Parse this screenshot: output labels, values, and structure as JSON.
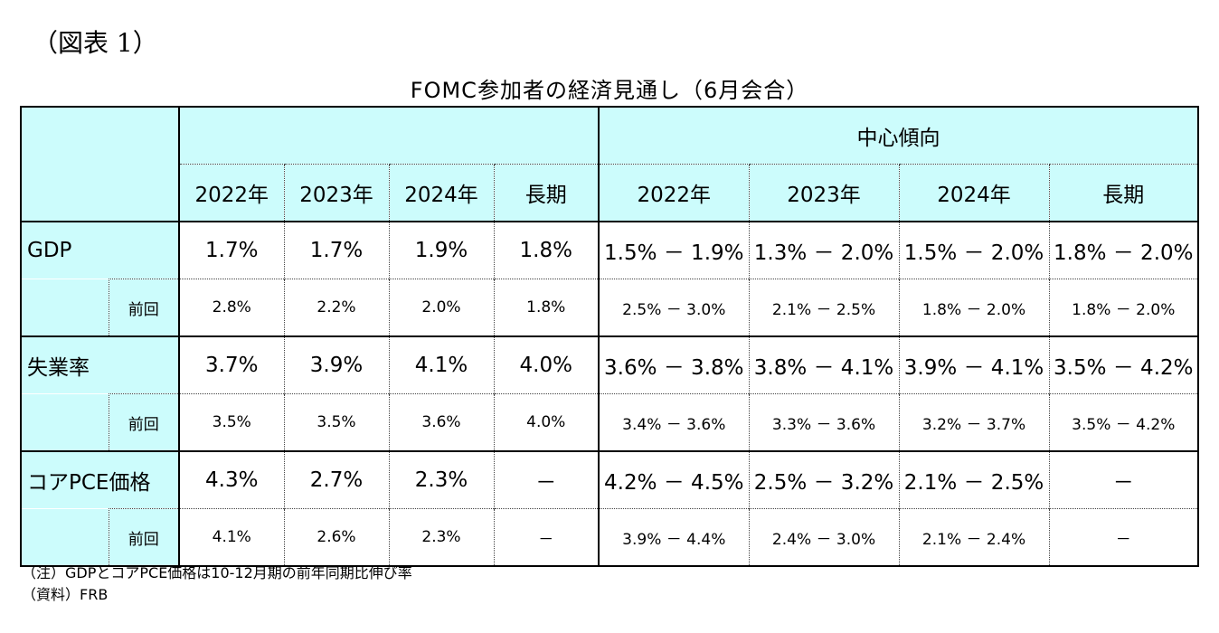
{
  "figure_label": "（図表 1）",
  "title": "FOMC参加者の経済見通し（6月会合）",
  "header": {
    "group_label": "中心傾向",
    "years": [
      "2022年",
      "2023年",
      "2024年",
      "長期"
    ],
    "ct_years": [
      "2022年",
      "2023年",
      "2024年",
      "長期"
    ]
  },
  "rows": [
    {
      "label": "GDP",
      "values": [
        "1.7%",
        "1.7%",
        "1.9%",
        "1.8%"
      ],
      "ct": [
        "1.5% － 1.9%",
        "1.3% － 2.0%",
        "1.5% － 2.0%",
        "1.8% － 2.0%"
      ],
      "prev_label": "前回",
      "prev_values": [
        "2.8%",
        "2.2%",
        "2.0%",
        "1.8%"
      ],
      "prev_ct": [
        "2.5% － 3.0%",
        "2.1% － 2.5%",
        "1.8% － 2.0%",
        "1.8% － 2.0%"
      ]
    },
    {
      "label": "失業率",
      "values": [
        "3.7%",
        "3.9%",
        "4.1%",
        "4.0%"
      ],
      "ct": [
        "3.6% － 3.8%",
        "3.8% － 4.1%",
        "3.9% － 4.1%",
        "3.5% － 4.2%"
      ],
      "prev_label": "前回",
      "prev_values": [
        "3.5%",
        "3.5%",
        "3.6%",
        "4.0%"
      ],
      "prev_ct": [
        "3.4% － 3.6%",
        "3.3% － 3.6%",
        "3.2% － 3.7%",
        "3.5% － 4.2%"
      ]
    },
    {
      "label": "コアPCE価格",
      "values": [
        "4.3%",
        "2.7%",
        "2.3%",
        "－"
      ],
      "ct": [
        "4.2% － 4.5%",
        "2.5% － 3.2%",
        "2.1% － 2.5%",
        "－"
      ],
      "prev_label": "前回",
      "prev_values": [
        "4.1%",
        "2.6%",
        "2.3%",
        "－"
      ],
      "prev_ct": [
        "3.9% － 4.4%",
        "2.4% － 3.0%",
        "2.1% － 2.4%",
        "－"
      ]
    }
  ],
  "notes": {
    "note": "（注）GDPとコアPCE価格は10-12月期の前年同期比伸び率",
    "source": "（資料）FRB"
  }
}
